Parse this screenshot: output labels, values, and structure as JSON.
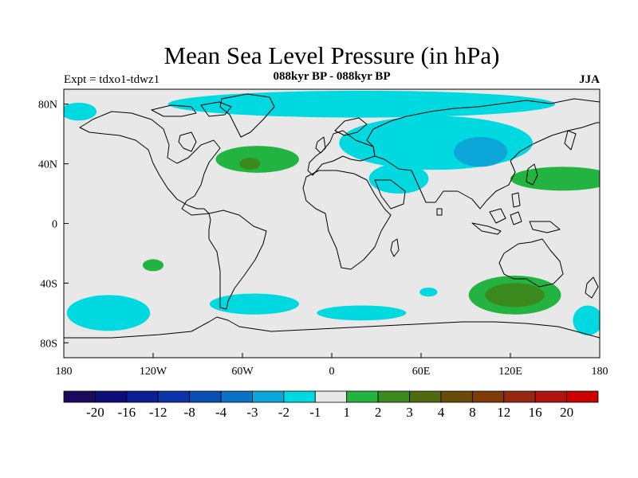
{
  "header": {
    "title": "Mean Sea Level Pressure (in hPa)",
    "subtitle_center": "088kyr BP - 088kyr BP",
    "subtitle_left": "Expt = tdxo1-tdwz1",
    "subtitle_right": "JJA"
  },
  "map": {
    "projection": "cylindrical-equidistant",
    "lon_range": [
      -180,
      180
    ],
    "lat_range": [
      -90,
      90
    ],
    "background_color": "#e8e8e8",
    "coastline_color": "#000000",
    "x_ticks": [
      {
        "value": -180,
        "label": "180"
      },
      {
        "value": -120,
        "label": "120W"
      },
      {
        "value": -60,
        "label": "60W"
      },
      {
        "value": 0,
        "label": "0"
      },
      {
        "value": 60,
        "label": "60E"
      },
      {
        "value": 120,
        "label": "120E"
      },
      {
        "value": 180,
        "label": "180"
      }
    ],
    "y_ticks": [
      {
        "value": 80,
        "label": "80N"
      },
      {
        "value": 40,
        "label": "40N"
      },
      {
        "value": 0,
        "label": "0"
      },
      {
        "value": -40,
        "label": "40S"
      },
      {
        "value": -80,
        "label": "80S"
      }
    ],
    "anomaly_regions": [
      {
        "name": "arctic-negative",
        "sign": "negative",
        "level": 1,
        "center_lon": 20,
        "center_lat": 80,
        "rx_deg": 130,
        "ry_deg": 9
      },
      {
        "name": "siberia-negative",
        "sign": "negative",
        "level": 1,
        "center_lon": 70,
        "center_lat": 54,
        "rx_deg": 65,
        "ry_deg": 18
      },
      {
        "name": "siberia-negative-core",
        "sign": "negative",
        "level": 2,
        "center_lon": 100,
        "center_lat": 48,
        "rx_deg": 18,
        "ry_deg": 10
      },
      {
        "name": "mideast-negative",
        "sign": "negative",
        "level": 1,
        "center_lon": 45,
        "center_lat": 30,
        "rx_deg": 20,
        "ry_deg": 10
      },
      {
        "name": "bering-negative",
        "sign": "negative",
        "level": 1,
        "center_lon": -170,
        "center_lat": 75,
        "rx_deg": 12,
        "ry_deg": 6
      },
      {
        "name": "south-pacific-negative",
        "sign": "negative",
        "level": 1,
        "center_lon": -150,
        "center_lat": -60,
        "rx_deg": 28,
        "ry_deg": 12
      },
      {
        "name": "drake-negative",
        "sign": "negative",
        "level": 1,
        "center_lon": -52,
        "center_lat": -54,
        "rx_deg": 30,
        "ry_deg": 7
      },
      {
        "name": "southern-ocean-negative",
        "sign": "negative",
        "level": 1,
        "center_lon": 20,
        "center_lat": -60,
        "rx_deg": 30,
        "ry_deg": 5
      },
      {
        "name": "indian-negative",
        "sign": "negative",
        "level": 1,
        "center_lon": 65,
        "center_lat": -46,
        "rx_deg": 6,
        "ry_deg": 3
      },
      {
        "name": "tasman-negative",
        "sign": "negative",
        "level": 1,
        "center_lon": 172,
        "center_lat": -65,
        "rx_deg": 10,
        "ry_deg": 10
      },
      {
        "name": "n-atlantic-positive",
        "sign": "positive",
        "level": 1,
        "center_lon": -50,
        "center_lat": 43,
        "rx_deg": 28,
        "ry_deg": 9
      },
      {
        "name": "n-atlantic-positive-core",
        "sign": "positive",
        "level": 2,
        "center_lon": -55,
        "center_lat": 40,
        "rx_deg": 7,
        "ry_deg": 4
      },
      {
        "name": "pacific-positive",
        "sign": "positive",
        "level": 1,
        "center_lon": 155,
        "center_lat": 30,
        "rx_deg": 35,
        "ry_deg": 8
      },
      {
        "name": "s-pacific-positive",
        "sign": "positive",
        "level": 1,
        "center_lon": -120,
        "center_lat": -28,
        "rx_deg": 7,
        "ry_deg": 4
      },
      {
        "name": "s-indian-positive",
        "sign": "positive",
        "level": 1,
        "center_lon": 123,
        "center_lat": -48,
        "rx_deg": 31,
        "ry_deg": 13
      },
      {
        "name": "s-indian-positive-core",
        "sign": "positive",
        "level": 2,
        "center_lon": 123,
        "center_lat": -48,
        "rx_deg": 20,
        "ry_deg": 8
      }
    ]
  },
  "legend": {
    "colors": [
      "#1a0a5c",
      "#0d0d78",
      "#0a1e96",
      "#0b34a8",
      "#0a4fb2",
      "#0c72c6",
      "#0ca6d9",
      "#00d9e0",
      "#e8e8e8",
      "#22b340",
      "#3b8a1e",
      "#4f6a0e",
      "#6a4a0a",
      "#7f3a0a",
      "#962812",
      "#b0140e",
      "#cc0000"
    ],
    "labels": [
      "-20",
      "-16",
      "-12",
      "-8",
      "-4",
      "-3",
      "-2",
      "-1",
      "1",
      "2",
      "3",
      "4",
      "8",
      "12",
      "16",
      "20"
    ]
  }
}
